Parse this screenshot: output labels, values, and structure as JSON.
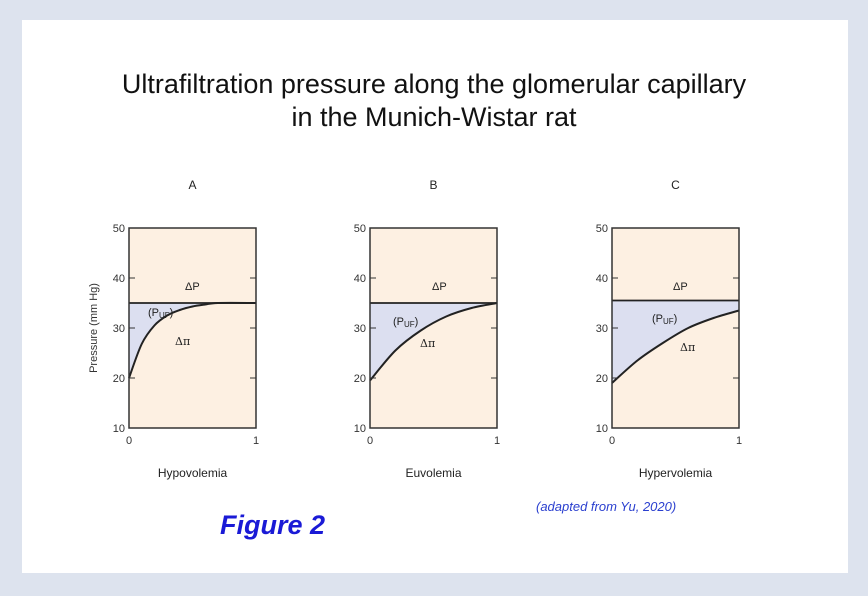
{
  "title_line1": "Ultrafiltration pressure along the glomerular capillary",
  "title_line2": "in the Munich-Wistar rat",
  "figure_label": "Figure 2",
  "citation": "(adapted from Yu, 2020)",
  "colors": {
    "background": "#fdf0e2",
    "puf_fill": "#dcdff0",
    "line": "#222222",
    "figure_label": "#1a1ad6"
  },
  "chart_data": [
    {
      "type": "area",
      "panel": "A",
      "xlabel": "Hypovolemia",
      "ylabel": "Pressure (mm Hg)",
      "ylim": [
        10,
        50
      ],
      "xlim": [
        0,
        1
      ],
      "yticks": [
        "10",
        "20",
        "30",
        "40",
        "50"
      ],
      "xticks": [
        "0",
        "1"
      ],
      "annotations": [
        "ΔP",
        "(PUF)",
        "Δπ"
      ],
      "series": [
        {
          "name": "ΔP",
          "x": [
            0,
            1
          ],
          "y": [
            35,
            35
          ]
        },
        {
          "name": "Δπ",
          "x": [
            0,
            0.1,
            0.2,
            0.3,
            0.4,
            0.5,
            0.6,
            0.7,
            1
          ],
          "y": [
            20,
            26.8,
            30.5,
            32.5,
            33.6,
            34.3,
            34.7,
            35,
            35
          ]
        }
      ]
    },
    {
      "type": "area",
      "panel": "B",
      "xlabel": "Euvolemia",
      "ylabel": "",
      "ylim": [
        10,
        50
      ],
      "xlim": [
        0,
        1
      ],
      "yticks": [
        "10",
        "20",
        "30",
        "40",
        "50"
      ],
      "xticks": [
        "0",
        "1"
      ],
      "annotations": [
        "ΔP",
        "(PUF)",
        "Δπ"
      ],
      "series": [
        {
          "name": "ΔP",
          "x": [
            0,
            1
          ],
          "y": [
            35,
            35
          ]
        },
        {
          "name": "Δπ",
          "x": [
            0,
            0.2,
            0.4,
            0.6,
            0.8,
            1
          ],
          "y": [
            19.5,
            25.5,
            29.5,
            32.3,
            34,
            35
          ]
        }
      ]
    },
    {
      "type": "area",
      "panel": "C",
      "xlabel": "Hypervolemia",
      "ylabel": "",
      "ylim": [
        10,
        50
      ],
      "xlim": [
        0,
        1
      ],
      "yticks": [
        "10",
        "20",
        "30",
        "40",
        "50"
      ],
      "xticks": [
        "0",
        "1"
      ],
      "annotations": [
        "ΔP",
        "(PUF)",
        "Δπ"
      ],
      "series": [
        {
          "name": "ΔP",
          "x": [
            0,
            1
          ],
          "y": [
            35.5,
            35.5
          ]
        },
        {
          "name": "Δπ",
          "x": [
            0,
            0.2,
            0.4,
            0.6,
            0.8,
            1
          ],
          "y": [
            19,
            23.5,
            27,
            30,
            32,
            33.5
          ]
        }
      ]
    }
  ]
}
